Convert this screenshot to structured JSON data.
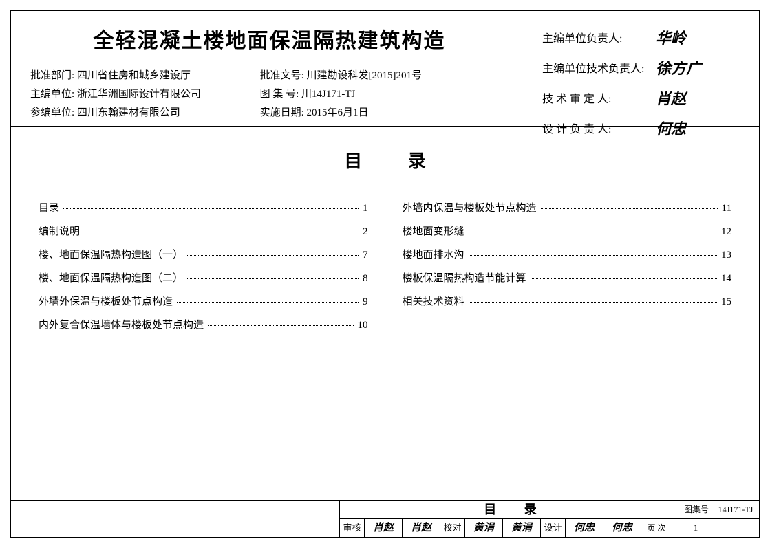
{
  "header": {
    "title": "全轻混凝土楼地面保温隔热建筑构造",
    "left_info": [
      {
        "label": "批准部门: ",
        "value": "四川省住房和城乡建设厅"
      },
      {
        "label": "主编单位: ",
        "value": "浙江华洲国际设计有限公司"
      },
      {
        "label": "参编单位: ",
        "value": "四川东翰建材有限公司"
      }
    ],
    "right_info": [
      {
        "label": "批准文号: ",
        "value": "川建勘设科发[2015]201号"
      },
      {
        "label": "图 集 号: ",
        "value": "川14J171-TJ"
      },
      {
        "label": "实施日期: ",
        "value": "2015年6月1日"
      }
    ],
    "signatures": [
      {
        "label": "主编单位负责人:",
        "value": "华岭"
      },
      {
        "label": "主编单位技术负责人:",
        "value": "徐方广"
      },
      {
        "label": "技 术 审 定 人:",
        "value": "肖赵"
      },
      {
        "label": "设 计 负 责 人:",
        "value": "何忠"
      }
    ]
  },
  "toc": {
    "title": "目 录",
    "left": [
      {
        "text": "目录",
        "page": "1"
      },
      {
        "text": "编制说明",
        "page": "2"
      },
      {
        "text": "楼、地面保温隔热构造图（一）",
        "page": "7"
      },
      {
        "text": "楼、地面保温隔热构造图（二）",
        "page": "8"
      },
      {
        "text": "外墙外保温与楼板处节点构造",
        "page": "9"
      },
      {
        "text": "内外复合保温墙体与楼板处节点构造",
        "page": "10"
      }
    ],
    "right": [
      {
        "text": "外墙内保温与楼板处节点构造",
        "page": "11"
      },
      {
        "text": "楼地面变形缝",
        "page": "12"
      },
      {
        "text": "楼地面排水沟",
        "page": "13"
      },
      {
        "text": "楼板保温隔热构造节能计算",
        "page": "14"
      },
      {
        "text": "相关技术资料",
        "page": "15"
      }
    ]
  },
  "footer": {
    "title": "目 录",
    "code_label": "图集号",
    "code_value": "14J171-TJ",
    "approvals": [
      {
        "label": "审核",
        "v1": "肖赵",
        "v2": "肖赵"
      },
      {
        "label": "校对",
        "v1": "黄涓",
        "v2": "黄涓"
      },
      {
        "label": "设计",
        "v1": "何忠",
        "v2": "何忠"
      }
    ],
    "page_label": "页 次",
    "page_value": "1"
  },
  "colors": {
    "border": "#000000",
    "background": "#ffffff",
    "text": "#000000"
  }
}
